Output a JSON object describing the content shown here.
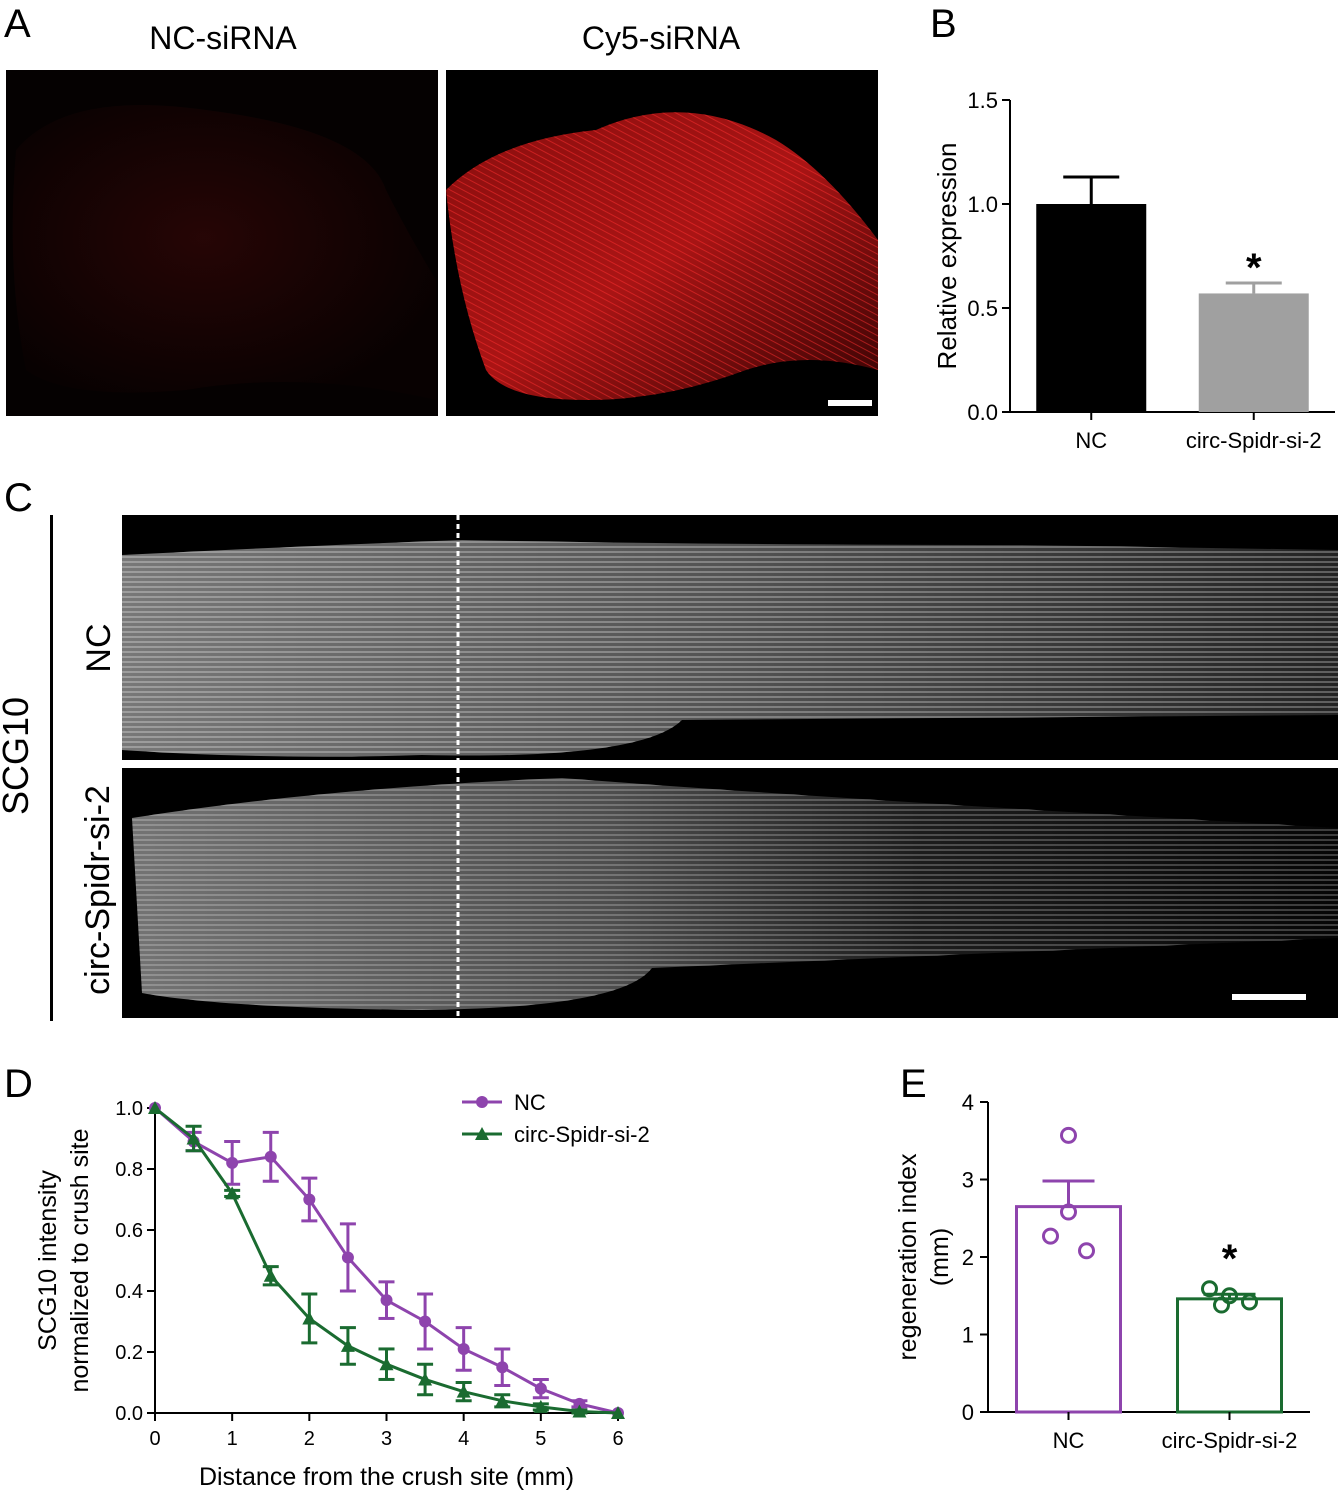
{
  "panel_labels": {
    "a": "A",
    "b": "B",
    "c": "C",
    "d": "D",
    "e": "E"
  },
  "panel_a": {
    "left_title": "NC-siRNA",
    "right_title": "Cy5-siRNA",
    "background_color": "#000000",
    "signal_color": "#e02020"
  },
  "panel_c": {
    "stain_label": "SCG10",
    "row_labels": [
      "NC",
      "circ-Spidr-si-2"
    ]
  },
  "chart_data": [
    {
      "panel": "B",
      "type": "bar",
      "ylabel": "Relative expression",
      "ylim": [
        0,
        1.5
      ],
      "yticks": [
        "0.0",
        "0.5",
        "1.0",
        "1.5"
      ],
      "categories": [
        "NC",
        "circ-Spidr-si-2"
      ],
      "values": [
        1.0,
        0.57
      ],
      "errors": [
        0.13,
        0.05
      ],
      "colors": [
        "#000000",
        "#a0a0a0"
      ],
      "annotations": [
        {
          "category": "circ-Spidr-si-2",
          "text": "*"
        }
      ]
    },
    {
      "panel": "D",
      "type": "line",
      "xlabel": "Distance from the crush site (mm)",
      "ylabel": [
        "SCG10 intensity",
        "normalized to crush site"
      ],
      "xlim": [
        0,
        6
      ],
      "ylim": [
        0,
        1.0
      ],
      "xticks": [
        "0",
        "1",
        "2",
        "3",
        "4",
        "5",
        "6"
      ],
      "yticks": [
        "0.0",
        "0.2",
        "0.4",
        "0.6",
        "0.8",
        "1.0"
      ],
      "legend_position": "top-right",
      "x": [
        0,
        0.5,
        1,
        1.5,
        2,
        2.5,
        3,
        3.5,
        4,
        4.5,
        5,
        5.5,
        6
      ],
      "series": [
        {
          "name": "NC",
          "color": "#8e44ad",
          "marker": "circle",
          "values": [
            1.0,
            0.89,
            0.82,
            0.84,
            0.7,
            0.51,
            0.37,
            0.3,
            0.21,
            0.15,
            0.08,
            0.03,
            0.0
          ],
          "errors": [
            0,
            0.03,
            0.07,
            0.08,
            0.07,
            0.11,
            0.06,
            0.09,
            0.07,
            0.06,
            0.03,
            0.01,
            0
          ]
        },
        {
          "name": "circ-Spidr-si-2",
          "color": "#1a6b30",
          "marker": "triangle",
          "values": [
            1.0,
            0.9,
            0.72,
            0.45,
            0.31,
            0.22,
            0.16,
            0.11,
            0.07,
            0.04,
            0.02,
            0.005,
            0.0
          ],
          "errors": [
            0,
            0.04,
            0.01,
            0.03,
            0.08,
            0.06,
            0.05,
            0.05,
            0.03,
            0.02,
            0.01,
            0.005,
            0
          ]
        }
      ]
    },
    {
      "panel": "E",
      "type": "bar",
      "ylabel": [
        "regeneration index",
        "(mm)"
      ],
      "ylim": [
        0,
        4
      ],
      "yticks": [
        "0",
        "1",
        "2",
        "3",
        "4"
      ],
      "categories": [
        "NC",
        "circ-Spidr-si-2"
      ],
      "values": [
        2.65,
        1.46
      ],
      "errors": [
        0.33,
        0.06
      ],
      "colors": [
        "#8e44ad",
        "#1a6b30"
      ],
      "points": [
        [
          3.57,
          2.27,
          2.08,
          2.58
        ],
        [
          1.59,
          1.5,
          1.42,
          1.38
        ]
      ],
      "annotations": [
        {
          "category": "circ-Spidr-si-2",
          "text": "*"
        }
      ]
    }
  ]
}
